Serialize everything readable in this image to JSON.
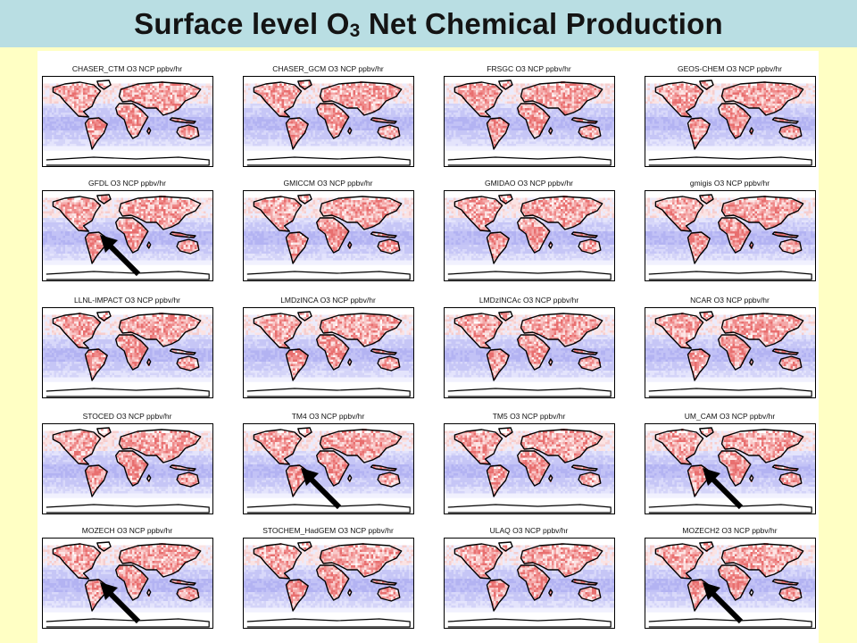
{
  "slide": {
    "title_prefix": "Surface level O",
    "title_subscript": "3",
    "title_suffix": " Net Chemical Production"
  },
  "panels": [
    {
      "label": "CHASER_CTM O3 NCP ppbv/hr",
      "arrow": false
    },
    {
      "label": "CHASER_GCM O3 NCP ppbv/hr",
      "arrow": false
    },
    {
      "label": "FRSGC O3 NCP ppbv/hr",
      "arrow": false
    },
    {
      "label": "GEOS-CHEM O3 NCP ppbv/hr",
      "arrow": false
    },
    {
      "label": "GFDL O3 NCP ppbv/hr",
      "arrow": true
    },
    {
      "label": "GMICCM O3 NCP ppbv/hr",
      "arrow": false
    },
    {
      "label": "GMIDAO O3 NCP ppbv/hr",
      "arrow": false
    },
    {
      "label": "gmigis O3 NCP ppbv/hr",
      "arrow": false
    },
    {
      "label": "LLNL-IMPACT O3 NCP ppbv/hr",
      "arrow": false
    },
    {
      "label": "LMDzINCA O3 NCP ppbv/hr",
      "arrow": false
    },
    {
      "label": "LMDzINCAc O3 NCP ppbv/hr",
      "arrow": false
    },
    {
      "label": "NCAR O3 NCP ppbv/hr",
      "arrow": false
    },
    {
      "label": "STOCED O3 NCP ppbv/hr",
      "arrow": false
    },
    {
      "label": "TM4 O3 NCP ppbv/hr",
      "arrow": true
    },
    {
      "label": "TM5 O3 NCP ppbv/hr",
      "arrow": false
    },
    {
      "label": "UM_CAM O3 NCP ppbv/hr",
      "arrow": true
    },
    {
      "label": "MOZECH O3 NCP ppbv/hr",
      "arrow": true
    },
    {
      "label": "STOCHEM_HadGEM O3 NCP ppbv/hr",
      "arrow": false
    },
    {
      "label": "ULAQ O3 NCP ppbv/hr",
      "arrow": false
    },
    {
      "label": "MOZECH2 O3 NCP ppbv/hr",
      "arrow": true
    }
  ],
  "colors": {
    "title_bar": "#b9dee3",
    "slide_background": "#ffffc4",
    "positive_production": "#f08a8a",
    "negative_production": "#b9b9f5",
    "coastline": "#000000",
    "arrow": "#000000"
  }
}
